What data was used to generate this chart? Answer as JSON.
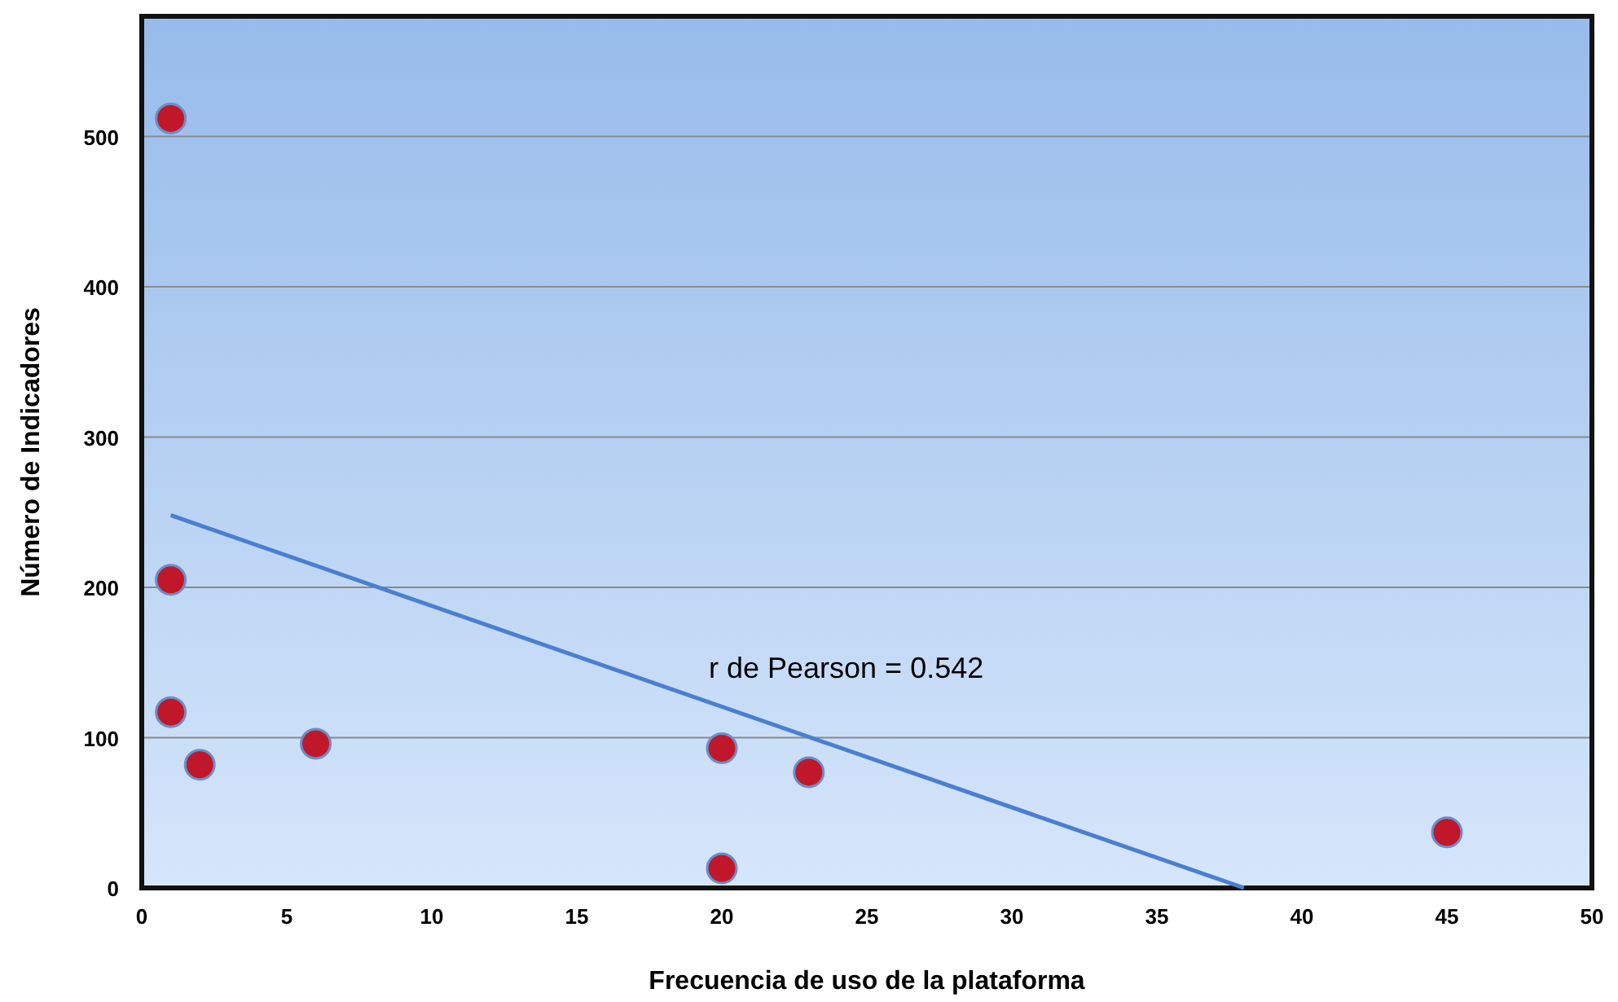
{
  "chart_data": {
    "type": "scatter",
    "xlabel": "Frecuencia de uso de la plataforma",
    "ylabel": "Número de Indicadores",
    "xlim": [
      0,
      50
    ],
    "ylim": [
      0,
      580
    ],
    "xticks": [
      0,
      5,
      10,
      15,
      20,
      25,
      30,
      35,
      40,
      45,
      50
    ],
    "yticks": [
      0,
      100,
      200,
      300,
      400,
      500
    ],
    "grid": "y",
    "series": [
      {
        "color": "#c0182a",
        "marker": "circle",
        "x": [
          1,
          1,
          1,
          2,
          6,
          20,
          20,
          23,
          45
        ],
        "values": [
          512,
          205,
          117,
          82,
          96,
          93,
          13,
          77,
          37
        ]
      },
      {
        "type": "line",
        "color": "#4a7fd0",
        "x": [
          1,
          38
        ],
        "values": [
          248,
          0
        ]
      }
    ],
    "annotations": [
      "r de Pearson = 0.542"
    ]
  }
}
